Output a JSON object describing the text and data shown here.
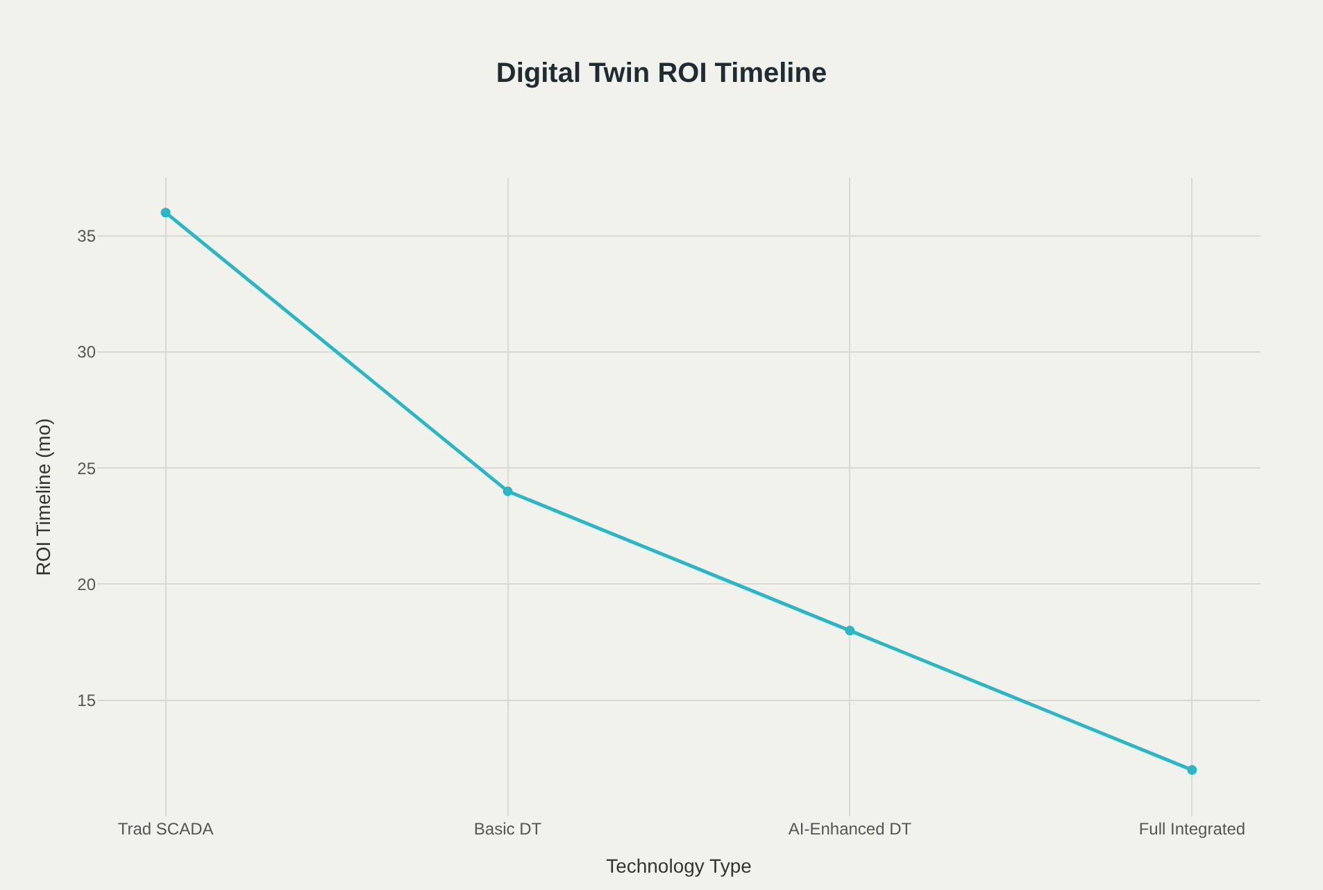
{
  "chart_data": {
    "type": "line",
    "title": "Digital Twin ROI Timeline",
    "xlabel": "Technology Type",
    "ylabel": "ROI Timeline (mo)",
    "categories": [
      "Trad SCADA",
      "Basic DT",
      "AI-Enhanced DT",
      "Full Integrated"
    ],
    "series": [
      {
        "color": "#2ab7c5",
        "values": [
          36,
          24,
          18,
          12
        ]
      }
    ],
    "ylim": [
      10,
      37.5
    ],
    "yticks": [
      15,
      20,
      25,
      30,
      35
    ],
    "grid": true,
    "marker": "circle",
    "line_style": "solid"
  }
}
